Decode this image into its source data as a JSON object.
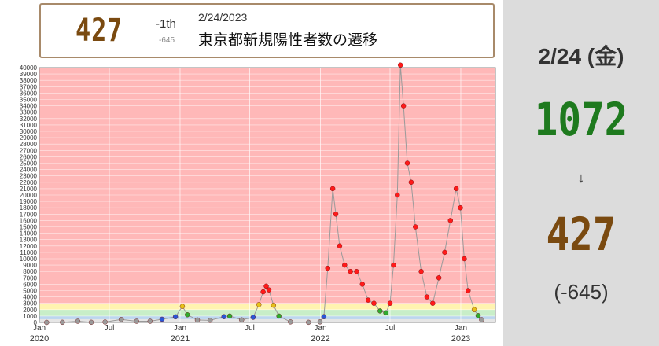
{
  "header": {
    "value": "427",
    "rank": "-1th",
    "diff": "-645",
    "date": "2/24/2023",
    "title": "東京都新規陽性者数の遷移"
  },
  "sidebar": {
    "date": "2/24 (金)",
    "previous": "1072",
    "arrow": "↓",
    "current": "427",
    "diff": "(-645)"
  },
  "colors": {
    "plot_background": "#ffb8b8",
    "marker": "#ff1a1a",
    "line": "#9a9a9a",
    "current_value": "#7a4a10",
    "previous_value": "#1e7a1e"
  },
  "chart_data": {
    "type": "scatter",
    "ylim": [
      0,
      40000
    ],
    "y_ticks": [
      0,
      1000,
      2000,
      3000,
      4000,
      5000,
      6000,
      7000,
      8000,
      9000,
      10000,
      11000,
      12000,
      13000,
      14000,
      15000,
      16000,
      17000,
      18000,
      19000,
      20000,
      21000,
      22000,
      23000,
      24000,
      25000,
      26000,
      27000,
      28000,
      29000,
      30000,
      31000,
      32000,
      33000,
      34000,
      35000,
      36000,
      37000,
      38000,
      39000,
      40000
    ],
    "x_range": [
      "2020-01-01",
      "2023-04-01"
    ],
    "x_ticks": [
      {
        "date": "2020-01-01",
        "label": "Jan",
        "sub": "2020"
      },
      {
        "date": "2020-07-01",
        "label": "Jul",
        "sub": ""
      },
      {
        "date": "2021-01-01",
        "label": "Jan",
        "sub": "2021"
      },
      {
        "date": "2021-07-01",
        "label": "Jul",
        "sub": ""
      },
      {
        "date": "2022-01-01",
        "label": "Jan",
        "sub": "2022"
      },
      {
        "date": "2022-07-01",
        "label": "Jul",
        "sub": ""
      },
      {
        "date": "2023-01-01",
        "label": "Jan",
        "sub": "2023"
      }
    ],
    "bands": [
      {
        "from": 0,
        "to": 500,
        "color": "#e6e6e6"
      },
      {
        "from": 500,
        "to": 1000,
        "color": "#bcd6ee"
      },
      {
        "from": 1000,
        "to": 2000,
        "color": "#c8eec8"
      },
      {
        "from": 2000,
        "to": 3000,
        "color": "#fff3b0"
      },
      {
        "from": 3000,
        "to": 40000,
        "color": "#ffb8b8"
      }
    ],
    "series": [
      {
        "points": [
          [
            "2020-01-20",
            0
          ],
          [
            "2020-03-01",
            20
          ],
          [
            "2020-04-10",
            180
          ],
          [
            "2020-05-15",
            20
          ],
          [
            "2020-06-20",
            60
          ],
          [
            "2020-08-01",
            460
          ],
          [
            "2020-09-10",
            180
          ],
          [
            "2020-10-15",
            180
          ],
          [
            "2020-11-15",
            500
          ],
          [
            "2020-12-20",
            880
          ],
          [
            "2021-01-07",
            2520
          ],
          [
            "2021-01-20",
            1200
          ],
          [
            "2021-02-15",
            380
          ],
          [
            "2021-03-20",
            320
          ],
          [
            "2021-04-25",
            900
          ],
          [
            "2021-05-10",
            1000
          ],
          [
            "2021-06-10",
            400
          ],
          [
            "2021-07-10",
            800
          ],
          [
            "2021-07-25",
            2800
          ],
          [
            "2021-08-05",
            4800
          ],
          [
            "2021-08-13",
            5700
          ],
          [
            "2021-08-20",
            5100
          ],
          [
            "2021-09-01",
            2700
          ],
          [
            "2021-09-15",
            1000
          ],
          [
            "2021-10-15",
            80
          ],
          [
            "2021-12-01",
            15
          ],
          [
            "2021-12-31",
            80
          ],
          [
            "2022-01-10",
            900
          ],
          [
            "2022-01-20",
            8500
          ],
          [
            "2022-02-02",
            21000
          ],
          [
            "2022-02-10",
            17000
          ],
          [
            "2022-02-20",
            12000
          ],
          [
            "2022-03-05",
            9000
          ],
          [
            "2022-03-20",
            8000
          ],
          [
            "2022-04-05",
            8000
          ],
          [
            "2022-04-20",
            6000
          ],
          [
            "2022-05-05",
            3500
          ],
          [
            "2022-05-20",
            3000
          ],
          [
            "2022-06-05",
            1800
          ],
          [
            "2022-06-20",
            1500
          ],
          [
            "2022-07-01",
            3000
          ],
          [
            "2022-07-10",
            9000
          ],
          [
            "2022-07-20",
            20000
          ],
          [
            "2022-07-28",
            40400
          ],
          [
            "2022-08-05",
            34000
          ],
          [
            "2022-08-15",
            25000
          ],
          [
            "2022-08-25",
            22000
          ],
          [
            "2022-09-05",
            15000
          ],
          [
            "2022-09-20",
            8000
          ],
          [
            "2022-10-05",
            4000
          ],
          [
            "2022-10-20",
            3000
          ],
          [
            "2022-11-05",
            7000
          ],
          [
            "2022-11-20",
            11000
          ],
          [
            "2022-12-05",
            16000
          ],
          [
            "2022-12-20",
            21000
          ],
          [
            "2022-12-31",
            18000
          ],
          [
            "2023-01-10",
            10000
          ],
          [
            "2023-01-20",
            5000
          ],
          [
            "2023-02-05",
            2000
          ],
          [
            "2023-02-15",
            1072
          ],
          [
            "2023-02-24",
            427
          ]
        ]
      }
    ]
  }
}
